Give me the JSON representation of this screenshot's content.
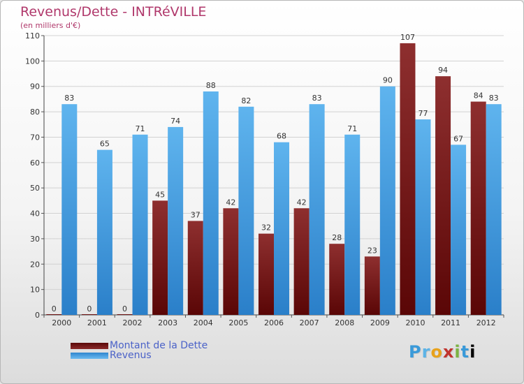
{
  "title": "Revenus/Dette - INTRéVILLE",
  "subtitle": "(en milliers d'€)",
  "logo": {
    "letters": [
      "P",
      "r",
      "o",
      "x",
      "i",
      "t",
      "i"
    ]
  },
  "chart_data": {
    "type": "bar",
    "categories": [
      "2000",
      "2001",
      "2002",
      "2003",
      "2004",
      "2005",
      "2006",
      "2007",
      "2008",
      "2009",
      "2010",
      "2011",
      "2012"
    ],
    "series": [
      {
        "name": "Montant de la Dette",
        "color": "#7a1a1a",
        "values": [
          0,
          0,
          0,
          45,
          37,
          42,
          32,
          42,
          28,
          23,
          107,
          94,
          84
        ]
      },
      {
        "name": "Revenus",
        "color": "#4ea5e5",
        "values": [
          83,
          65,
          71,
          74,
          88,
          82,
          68,
          83,
          71,
          90,
          77,
          67,
          83
        ]
      }
    ],
    "ylim": [
      0,
      110
    ],
    "yticks": [
      0,
      10,
      20,
      30,
      40,
      50,
      60,
      70,
      80,
      90,
      100,
      110
    ],
    "grid": true,
    "legend": "bottom-left",
    "data_labels": true
  }
}
